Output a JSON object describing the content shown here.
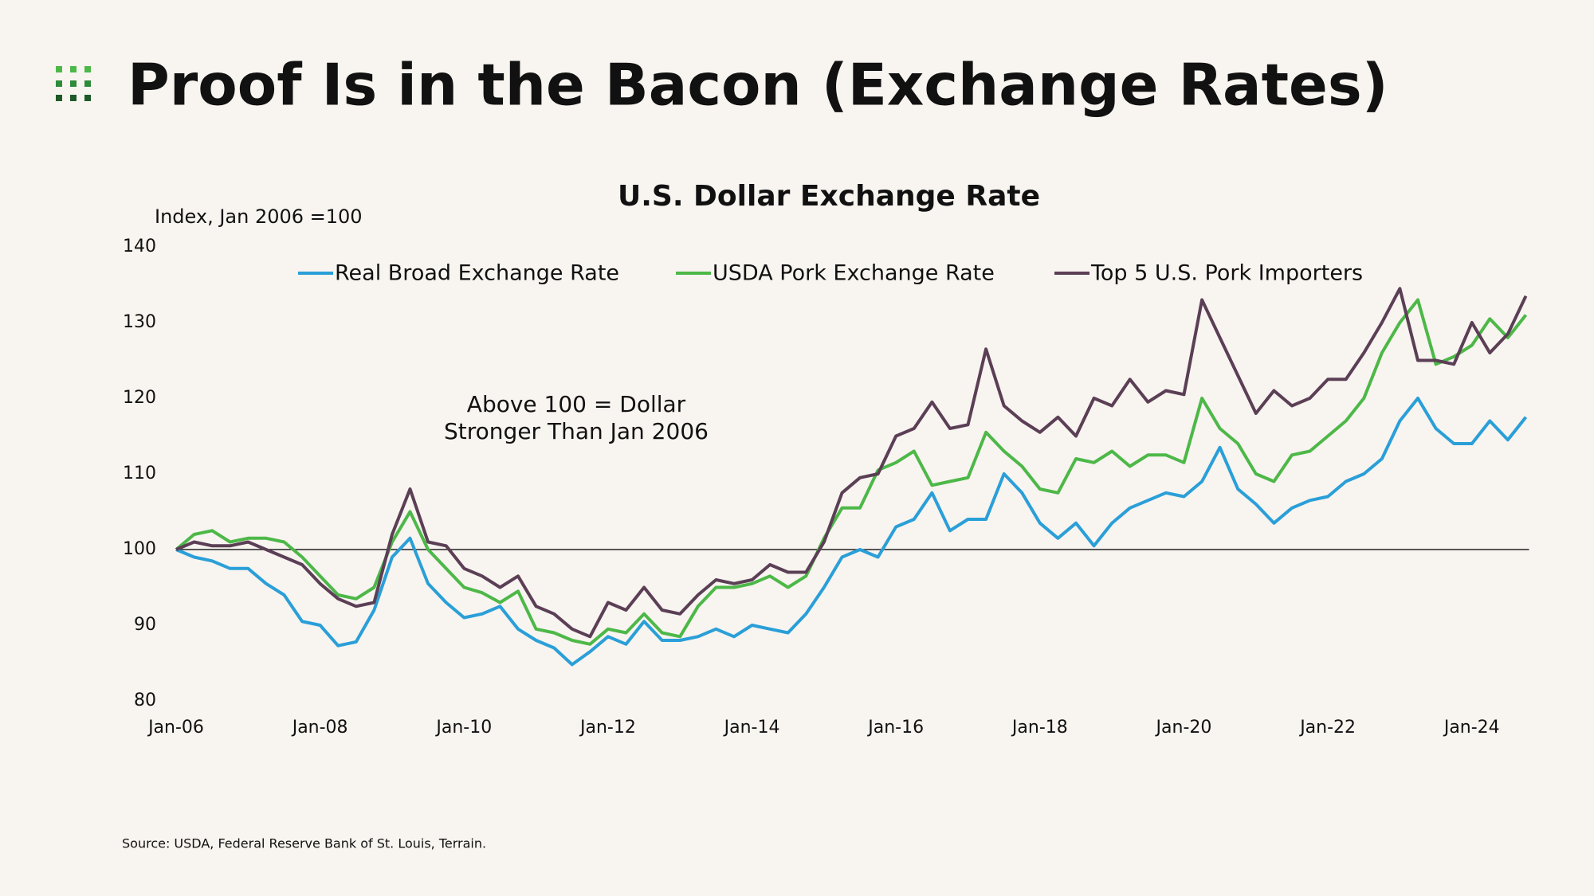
{
  "header": {
    "title": "Proof Is in the Bacon (Exchange Rates)"
  },
  "chart_data": {
    "type": "line",
    "title": "U.S. Dollar Exchange Rate",
    "y_axis_label": "Index, Jan 2006 =100",
    "annotation": [
      "Above 100 = Dollar",
      "Stronger Than Jan 2006"
    ],
    "categories": [
      "Jan-06",
      null,
      null,
      null,
      null,
      null,
      null,
      null,
      "Jan-08",
      null,
      null,
      null,
      null,
      null,
      null,
      null,
      "Jan-10",
      null,
      null,
      null,
      null,
      null,
      null,
      null,
      "Jan-12",
      null,
      null,
      null,
      null,
      null,
      null,
      null,
      "Jan-14",
      null,
      null,
      null,
      null,
      null,
      null,
      null,
      "Jan-16",
      null,
      null,
      null,
      null,
      null,
      null,
      null,
      "Jan-18",
      null,
      null,
      null,
      null,
      null,
      null,
      null,
      "Jan-20",
      null,
      null,
      null,
      null,
      null,
      null,
      null,
      "Jan-22",
      null,
      null,
      null,
      null,
      null,
      null,
      null,
      "Jan-24",
      null,
      null,
      null
    ],
    "series": [
      {
        "name": "Real Broad Exchange Rate",
        "color": "#2a9fd8",
        "values": [
          100,
          99,
          98.5,
          97.5,
          97.5,
          95.5,
          94,
          90.5,
          90,
          87.3,
          87.8,
          92,
          99,
          101.5,
          95.5,
          93,
          91,
          91.5,
          92.5,
          89.5,
          88,
          87,
          84.8,
          86.5,
          88.5,
          87.5,
          90.5,
          88,
          88,
          88.5,
          89.5,
          88.5,
          90,
          89.5,
          89,
          91.5,
          95,
          99,
          100,
          99,
          103,
          104,
          107.5,
          102.5,
          104,
          104,
          110,
          107.5,
          103.5,
          101.5,
          103.5,
          100.5,
          103.5,
          105.5,
          106.5,
          107.5,
          107,
          109,
          113.5,
          108,
          106,
          103.5,
          105.5,
          106.5,
          107,
          109,
          110,
          112,
          117,
          120,
          116,
          114,
          114,
          117,
          114.5,
          117.5
        ]
      },
      {
        "name": "USDA Pork Exchange Rate",
        "color": "#4db848",
        "values": [
          100,
          102,
          102.5,
          101,
          101.5,
          101.5,
          101,
          99,
          96.5,
          94,
          93.5,
          95,
          101,
          105,
          100,
          97.5,
          95,
          94.3,
          93,
          94.5,
          89.5,
          89,
          88,
          87.5,
          89.5,
          89,
          91.5,
          89,
          88.5,
          92.5,
          95,
          95,
          95.5,
          96.5,
          95,
          96.5,
          101.5,
          105.5,
          105.5,
          110.5,
          111.5,
          113,
          108.5,
          109,
          109.5,
          115.5,
          113,
          111,
          108,
          107.5,
          112,
          111.5,
          113,
          111,
          112.5,
          112.5,
          111.5,
          120,
          116,
          114,
          110,
          109,
          112.5,
          113,
          115,
          117,
          120,
          126,
          130,
          133,
          124.5,
          125.5,
          127,
          130.5,
          128,
          131
        ]
      },
      {
        "name": "Top 5 U.S. Pork Importers",
        "color": "#5b3f55",
        "values": [
          100,
          101,
          100.5,
          100.5,
          101,
          100,
          99,
          98,
          95.5,
          93.5,
          92.5,
          93,
          102,
          108,
          101,
          100.5,
          97.5,
          96.5,
          95,
          96.5,
          92.5,
          91.5,
          89.5,
          88.5,
          93,
          92,
          95,
          92,
          91.5,
          94,
          96,
          95.5,
          96,
          98,
          97,
          97,
          101,
          107.5,
          109.5,
          110,
          115,
          116,
          119.5,
          116,
          116.5,
          126.5,
          119,
          117,
          115.5,
          117.5,
          115,
          120,
          119,
          122.5,
          119.5,
          121,
          120.5,
          133,
          128,
          123,
          118,
          121,
          119,
          120,
          122.5,
          122.5,
          126,
          130,
          134.5,
          125,
          125,
          124.5,
          130,
          126,
          128.5,
          133.5
        ]
      }
    ],
    "ylim": [
      80,
      140
    ],
    "yticks": [
      80,
      90,
      100,
      110,
      120,
      130,
      140
    ],
    "grid": false,
    "legend": "top",
    "source": "Source: USDA, Federal Reserve Bank of St. Louis, Terrain."
  }
}
